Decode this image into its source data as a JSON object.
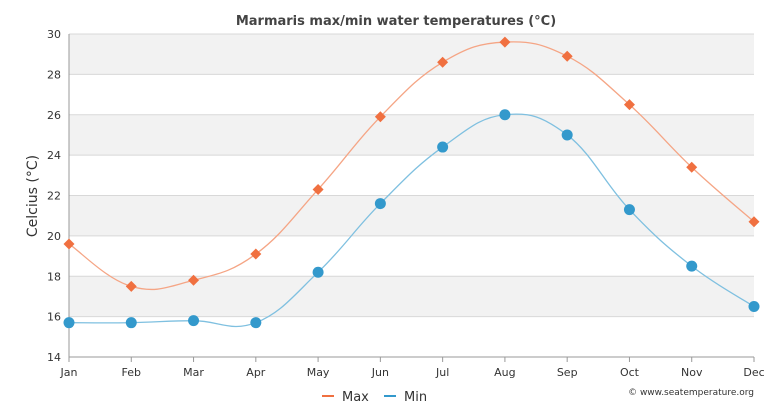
{
  "chart_data": {
    "type": "line",
    "title": "Marmaris max/min water temperatures (°C)",
    "xlabel": "",
    "ylabel": "Celcius (°C)",
    "ylim": [
      14,
      30
    ],
    "yticks": [
      "14",
      "16",
      "18",
      "20",
      "22",
      "24",
      "26",
      "28",
      "30"
    ],
    "categories": [
      "Jan",
      "Feb",
      "Mar",
      "Apr",
      "May",
      "Jun",
      "Jul",
      "Aug",
      "Sep",
      "Oct",
      "Nov",
      "Dec"
    ],
    "series": [
      {
        "name": "Max",
        "color": "#f07040",
        "line_color": "#f5a585",
        "marker": "diamond",
        "values": [
          19.6,
          17.5,
          17.8,
          19.1,
          22.3,
          25.9,
          28.6,
          29.6,
          28.9,
          26.5,
          23.4,
          20.7
        ]
      },
      {
        "name": "Min",
        "color": "#3399cc",
        "line_color": "#7fc0e0",
        "marker": "circle",
        "values": [
          15.7,
          15.7,
          15.8,
          15.7,
          18.2,
          21.6,
          24.4,
          26.0,
          25.0,
          21.3,
          18.5,
          16.5
        ]
      }
    ],
    "legend_position": "bottom-center",
    "grid": true
  },
  "credit": "© www.seatemperature.org"
}
